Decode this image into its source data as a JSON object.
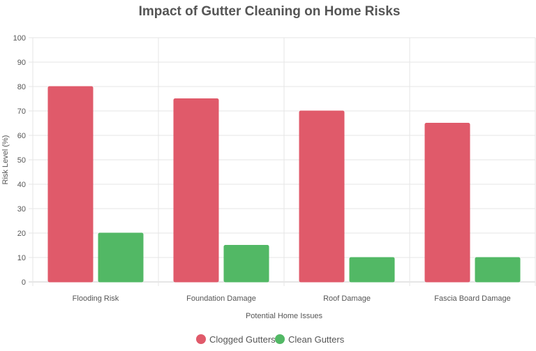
{
  "chart_data": {
    "type": "bar",
    "title": "Impact of Gutter Cleaning on Home Risks",
    "xlabel": "Potential Home Issues",
    "ylabel": "Risk Level (%)",
    "categories": [
      "Flooding Risk",
      "Foundation Damage",
      "Roof Damage",
      "Fascia Board Damage"
    ],
    "series": [
      {
        "name": "Clogged Gutters",
        "values": [
          80,
          75,
          70,
          65
        ],
        "color": "#e05a6a"
      },
      {
        "name": "Clean Gutters",
        "values": [
          20,
          15,
          10,
          10
        ],
        "color": "#52b865"
      }
    ],
    "ylim": [
      0,
      100
    ],
    "yticks": [
      0,
      10,
      20,
      30,
      40,
      50,
      60,
      70,
      80,
      90,
      100
    ],
    "grid": true,
    "legend_position": "bottom-center"
  }
}
